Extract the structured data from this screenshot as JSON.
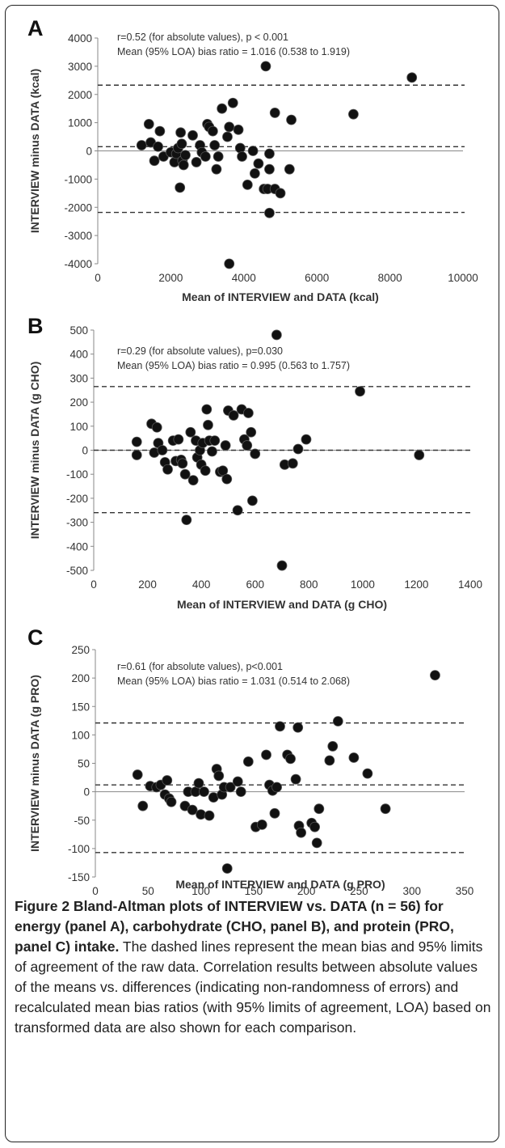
{
  "chart_data": [
    {
      "type": "scatter",
      "panel": "A",
      "xlabel": "Mean of INTERVIEW and DATA (kcal)",
      "ylabel": "INTERVIEW minus DATA (kcal)",
      "xlim": [
        0,
        10000
      ],
      "ylim": [
        -4000,
        4000
      ],
      "xticks": [
        0,
        2000,
        4000,
        6000,
        8000,
        10000
      ],
      "yticks": [
        -4000,
        -3000,
        -2000,
        -1000,
        0,
        1000,
        2000,
        3000,
        4000
      ],
      "grid": false,
      "annotations": [
        "r=0.52 (for absolute values), p < 0.001",
        "Mean (95% LOA) bias ratio = 1.016 (0.538 to 1.919)"
      ],
      "reference_lines": [
        2330,
        150,
        -2180
      ],
      "points": [
        [
          1200,
          200
        ],
        [
          1400,
          950
        ],
        [
          1450,
          300
        ],
        [
          1550,
          -350
        ],
        [
          1650,
          150
        ],
        [
          1700,
          700
        ],
        [
          1800,
          -200
        ],
        [
          2000,
          -50
        ],
        [
          2100,
          -400
        ],
        [
          2150,
          -100
        ],
        [
          2200,
          100
        ],
        [
          2250,
          -1300
        ],
        [
          2270,
          650
        ],
        [
          2300,
          250
        ],
        [
          2320,
          -350
        ],
        [
          2350,
          -500
        ],
        [
          2400,
          -150
        ],
        [
          2600,
          550
        ],
        [
          2700,
          -400
        ],
        [
          2800,
          200
        ],
        [
          2850,
          -50
        ],
        [
          2950,
          -200
        ],
        [
          3000,
          950
        ],
        [
          3050,
          850
        ],
        [
          3150,
          700
        ],
        [
          3200,
          200
        ],
        [
          3250,
          -650
        ],
        [
          3300,
          -200
        ],
        [
          3400,
          1500
        ],
        [
          3550,
          500
        ],
        [
          3600,
          850
        ],
        [
          3600,
          -4000
        ],
        [
          3700,
          1700
        ],
        [
          3850,
          750
        ],
        [
          3900,
          100
        ],
        [
          3950,
          -200
        ],
        [
          4100,
          -1200
        ],
        [
          4250,
          0
        ],
        [
          4300,
          -800
        ],
        [
          4400,
          -450
        ],
        [
          4550,
          -1350
        ],
        [
          4600,
          3000
        ],
        [
          4650,
          -1350
        ],
        [
          4700,
          -100
        ],
        [
          4700,
          -650
        ],
        [
          4700,
          -2200
        ],
        [
          4850,
          1350
        ],
        [
          4850,
          -1350
        ],
        [
          5000,
          -1500
        ],
        [
          5300,
          1100
        ],
        [
          5250,
          -650
        ],
        [
          7000,
          1300
        ],
        [
          8600,
          2600
        ]
      ]
    },
    {
      "type": "scatter",
      "panel": "B",
      "xlabel": "Mean of INTERVIEW and DATA (g CHO)",
      "ylabel": "INTERVIEW minus DATA (g CHO)",
      "xlim": [
        0,
        1400
      ],
      "ylim": [
        -500,
        500
      ],
      "xticks": [
        0,
        200,
        400,
        600,
        800,
        1000,
        1200,
        1400
      ],
      "yticks": [
        -500,
        -400,
        -300,
        -200,
        -100,
        0,
        100,
        200,
        300,
        400,
        500
      ],
      "grid": false,
      "annotations": [
        "r=0.29 (for absolute values), p=0.030",
        "Mean (95% LOA) bias ratio = 0.995 (0.563 to 1.757)"
      ],
      "reference_lines": [
        265,
        0,
        -260
      ],
      "points": [
        [
          160,
          35
        ],
        [
          160,
          -20
        ],
        [
          215,
          110
        ],
        [
          225,
          -10
        ],
        [
          235,
          95
        ],
        [
          240,
          30
        ],
        [
          255,
          0
        ],
        [
          265,
          -50
        ],
        [
          275,
          -80
        ],
        [
          295,
          40
        ],
        [
          305,
          -45
        ],
        [
          315,
          45
        ],
        [
          325,
          -40
        ],
        [
          330,
          -55
        ],
        [
          340,
          -100
        ],
        [
          345,
          -290
        ],
        [
          360,
          75
        ],
        [
          370,
          -125
        ],
        [
          380,
          40
        ],
        [
          385,
          -30
        ],
        [
          395,
          0
        ],
        [
          400,
          -60
        ],
        [
          405,
          30
        ],
        [
          415,
          -85
        ],
        [
          420,
          170
        ],
        [
          425,
          105
        ],
        [
          430,
          40
        ],
        [
          440,
          -5
        ],
        [
          450,
          40
        ],
        [
          470,
          -90
        ],
        [
          480,
          -85
        ],
        [
          490,
          20
        ],
        [
          495,
          -120
        ],
        [
          500,
          165
        ],
        [
          520,
          145
        ],
        [
          535,
          -250
        ],
        [
          550,
          170
        ],
        [
          560,
          45
        ],
        [
          570,
          20
        ],
        [
          575,
          155
        ],
        [
          585,
          75
        ],
        [
          590,
          -210
        ],
        [
          600,
          -15
        ],
        [
          680,
          480
        ],
        [
          700,
          -480
        ],
        [
          710,
          -60
        ],
        [
          740,
          -55
        ],
        [
          760,
          5
        ],
        [
          790,
          45
        ],
        [
          990,
          245
        ],
        [
          1210,
          -20
        ]
      ]
    },
    {
      "type": "scatter",
      "panel": "C",
      "xlabel": "Mean of INTERVIEW and DATA (g PRO)",
      "ylabel": "INTERVIEW minus DATA (g PRO)",
      "xlim": [
        0,
        350
      ],
      "ylim": [
        -150,
        250
      ],
      "xticks": [
        0,
        50,
        100,
        150,
        200,
        250,
        300,
        350
      ],
      "yticks": [
        -150,
        -100,
        -50,
        0,
        50,
        100,
        150,
        200,
        250
      ],
      "grid": false,
      "annotations": [
        "r=0.61 (for absolute values), p<0.001",
        "Mean (95% LOA) bias ratio = 1.031 (0.514 to 2.068)"
      ],
      "reference_lines": [
        121,
        12,
        -107
      ],
      "points": [
        [
          40,
          30
        ],
        [
          45,
          -25
        ],
        [
          52,
          10
        ],
        [
          58,
          8
        ],
        [
          62,
          12
        ],
        [
          66,
          -5
        ],
        [
          68,
          20
        ],
        [
          70,
          -12
        ],
        [
          72,
          -18
        ],
        [
          85,
          -25
        ],
        [
          88,
          0
        ],
        [
          92,
          -32
        ],
        [
          95,
          0
        ],
        [
          98,
          15
        ],
        [
          100,
          -40
        ],
        [
          103,
          0
        ],
        [
          108,
          -42
        ],
        [
          112,
          -10
        ],
        [
          115,
          40
        ],
        [
          117,
          28
        ],
        [
          120,
          -5
        ],
        [
          122,
          8
        ],
        [
          125,
          -135
        ],
        [
          128,
          8
        ],
        [
          135,
          18
        ],
        [
          138,
          0
        ],
        [
          145,
          53
        ],
        [
          152,
          -62
        ],
        [
          158,
          -58
        ],
        [
          162,
          65
        ],
        [
          165,
          12
        ],
        [
          168,
          2
        ],
        [
          170,
          -38
        ],
        [
          172,
          8
        ],
        [
          175,
          115
        ],
        [
          182,
          65
        ],
        [
          185,
          58
        ],
        [
          190,
          22
        ],
        [
          192,
          113
        ],
        [
          193,
          -60
        ],
        [
          195,
          -72
        ],
        [
          205,
          -55
        ],
        [
          208,
          -62
        ],
        [
          210,
          -90
        ],
        [
          212,
          -30
        ],
        [
          222,
          55
        ],
        [
          225,
          80
        ],
        [
          230,
          124
        ],
        [
          245,
          60
        ],
        [
          258,
          32
        ],
        [
          275,
          -30
        ],
        [
          322,
          205
        ]
      ]
    }
  ],
  "caption": {
    "bold": "Figure 2 Bland-Altman plots of INTERVIEW vs. DATA (n = 56) for energy (panel A), carbohydrate (CHO, panel B), and protein (PRO, panel C) intake.",
    "body": " The dashed lines represent the mean bias and 95% limits of agreement of the raw data. Correlation results between absolute values of the means vs. differences (indicating non-randomness of errors) and recalculated mean bias ratios (with 95% limits of agreement, LOA) based on transformed data are also shown for each comparison."
  }
}
